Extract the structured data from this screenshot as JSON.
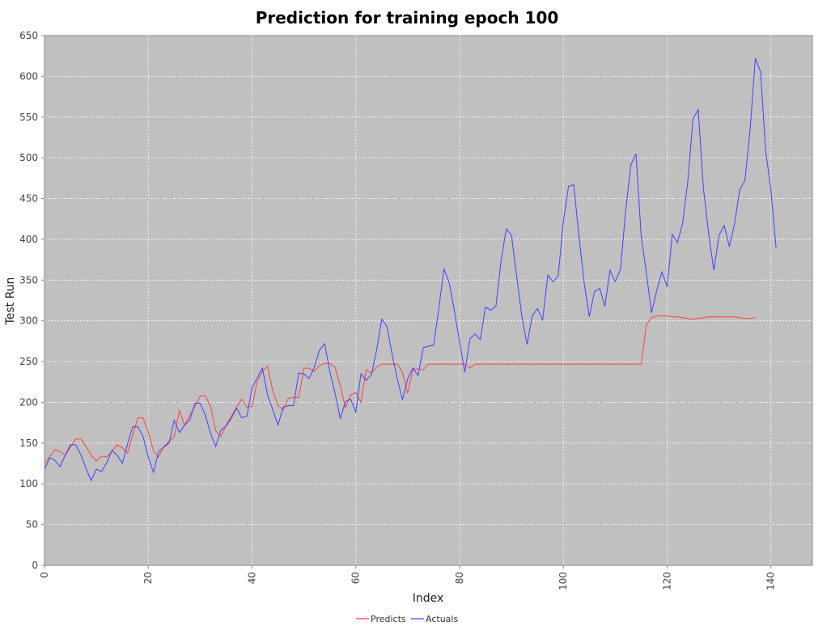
{
  "chart_data": {
    "type": "line",
    "title": "Prediction for training epoch 100",
    "xlabel": "Index",
    "ylabel": "Test Run",
    "xlim": [
      0,
      148
    ],
    "ylim": [
      0,
      650
    ],
    "xticks": [
      0,
      20,
      40,
      60,
      80,
      100,
      120,
      140
    ],
    "yticks": [
      0,
      50,
      100,
      150,
      200,
      250,
      300,
      350,
      400,
      450,
      500,
      550,
      600,
      650
    ],
    "grid": true,
    "legend_position": "bottom-center",
    "background": "#c0c0c0",
    "series": [
      {
        "name": "Predicts",
        "color": "#ff4040",
        "values": [
          125,
          133,
          142,
          140,
          135,
          145,
          155,
          155,
          146,
          135,
          128,
          134,
          133,
          140,
          148,
          144,
          138,
          160,
          181,
          181,
          164,
          140,
          133,
          146,
          152,
          158,
          190,
          172,
          184,
          195,
          208,
          208,
          195,
          165,
          158,
          172,
          183,
          194,
          204,
          194,
          195,
          226,
          238,
          244,
          214,
          196,
          191,
          205,
          206,
          206,
          242,
          242,
          238,
          245,
          248,
          248,
          243,
          220,
          193,
          209,
          212,
          200,
          240,
          236,
          243,
          247,
          247,
          247,
          247,
          237,
          211,
          241,
          241,
          240,
          247,
          247,
          247,
          247,
          247,
          247,
          247,
          247,
          242,
          247,
          247,
          247,
          247,
          247,
          247,
          247,
          247,
          247,
          247,
          247,
          247,
          247,
          247,
          247,
          247,
          247,
          247,
          247,
          247,
          247,
          247,
          247,
          247,
          247,
          247,
          247,
          247,
          247,
          247,
          247,
          247,
          247,
          295,
          304,
          306,
          306,
          306,
          305,
          305,
          304,
          303,
          302,
          303,
          304,
          305,
          305,
          305,
          305,
          305,
          305,
          304,
          303,
          303,
          304
        ]
      },
      {
        "name": "Actuals",
        "color": "#4040ff",
        "values": [
          118,
          132,
          129,
          121,
          135,
          148,
          148,
          136,
          119,
          104,
          118,
          115,
          126,
          141,
          135,
          125,
          149,
          170,
          170,
          158,
          133,
          114,
          140,
          145,
          150,
          178,
          163,
          172,
          178,
          199,
          199,
          184,
          162,
          146,
          166,
          171,
          180,
          193,
          181,
          183,
          218,
          230,
          242,
          209,
          191,
          172,
          194,
          196,
          196,
          236,
          235,
          229,
          243,
          264,
          272,
          237,
          211,
          180,
          201,
          204,
          188,
          235,
          227,
          234,
          264,
          302,
          293,
          259,
          229,
          203,
          229,
          242,
          233,
          267,
          269,
          270,
          315,
          364,
          347,
          312,
          274,
          237,
          278,
          284,
          277,
          317,
          313,
          318,
          374,
          413,
          405,
          355,
          306,
          271,
          306,
          315,
          301,
          356,
          348,
          355,
          422,
          465,
          467,
          404,
          347,
          305,
          336,
          340,
          318,
          362,
          348,
          363,
          435,
          491,
          505,
          404,
          359,
          310,
          337,
          360,
          342,
          406,
          396,
          420,
          472,
          548,
          559,
          463,
          407,
          362,
          405,
          417,
          391,
          419,
          461,
          472,
          535,
          622,
          606,
          508,
          461,
          390
        ]
      }
    ]
  }
}
